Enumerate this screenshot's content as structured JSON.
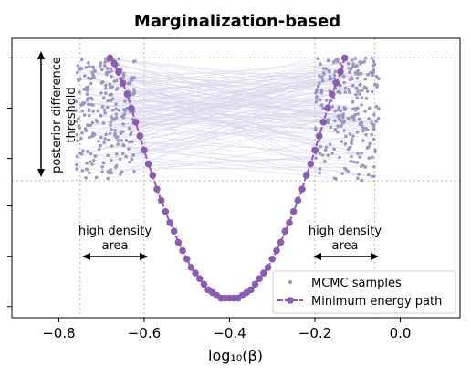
{
  "chart_data": {
    "type": "scatter",
    "title": "Marginalization-based",
    "xlabel": "log₁₀(β)",
    "ylabel": "",
    "xlim": [
      -0.91,
      0.14
    ],
    "ylim": [
      0,
      1
    ],
    "xticks": [
      -0.8,
      -0.6,
      -0.4,
      -0.2,
      0.0
    ],
    "xtick_labels": [
      "−0.8",
      "−0.6",
      "−0.4",
      "−0.2",
      "0.0"
    ],
    "yticks_unlabeled": [
      0.04,
      0.22,
      0.4,
      0.57,
      0.75,
      0.93
    ],
    "grid": "dotted vertical lines at -0.75, -0.60, -0.20, -0.06; dotted horizontal lines at y=0.93 and y=0.49",
    "legend": {
      "placement": "lower-right",
      "entries": [
        "MCMC samples",
        "Minimum energy path"
      ]
    },
    "colors": {
      "samples": "#9a96c2",
      "path": "#8c5bb5",
      "lines": "#d8d6ec",
      "grid": "#bdbdbd"
    },
    "series": [
      {
        "name": "Minimum energy path",
        "kind": "line-with-markers",
        "x": [
          -0.68,
          -0.67,
          -0.66,
          -0.65,
          -0.64,
          -0.63,
          -0.62,
          -0.61,
          -0.6,
          -0.59,
          -0.58,
          -0.57,
          -0.56,
          -0.55,
          -0.54,
          -0.53,
          -0.52,
          -0.51,
          -0.5,
          -0.49,
          -0.48,
          -0.47,
          -0.46,
          -0.45,
          -0.44,
          -0.43,
          -0.42,
          -0.41,
          -0.4,
          -0.39,
          -0.38,
          -0.37,
          -0.36,
          -0.35,
          -0.34,
          -0.33,
          -0.32,
          -0.31,
          -0.3,
          -0.29,
          -0.28,
          -0.27,
          -0.26,
          -0.25,
          -0.24,
          -0.23,
          -0.22,
          -0.21,
          -0.2,
          -0.19,
          -0.18,
          -0.17,
          -0.16,
          -0.15,
          -0.14,
          -0.13
        ],
        "y": [
          0.93,
          0.91,
          0.88,
          0.84,
          0.8,
          0.75,
          0.7,
          0.65,
          0.6,
          0.55,
          0.51,
          0.46,
          0.42,
          0.38,
          0.34,
          0.31,
          0.27,
          0.24,
          0.21,
          0.18,
          0.16,
          0.14,
          0.12,
          0.1,
          0.09,
          0.08,
          0.07,
          0.07,
          0.07,
          0.07,
          0.07,
          0.08,
          0.09,
          0.1,
          0.12,
          0.14,
          0.16,
          0.18,
          0.21,
          0.24,
          0.27,
          0.31,
          0.34,
          0.38,
          0.42,
          0.46,
          0.51,
          0.55,
          0.6,
          0.65,
          0.7,
          0.75,
          0.8,
          0.84,
          0.88,
          0.93
        ]
      },
      {
        "name": "MCMC samples",
        "kind": "points",
        "count": 500,
        "x_range_left": [
          -0.76,
          -0.62
        ],
        "x_range_right": [
          -0.2,
          -0.05
        ],
        "y_range": [
          0.49,
          0.93
        ]
      }
    ],
    "annotations": [
      {
        "text": "posterior difference",
        "rotation": -90
      },
      {
        "text": "threshold",
        "rotation": -90
      },
      {
        "text": "high density",
        "x": -0.68
      },
      {
        "text": "area",
        "x": -0.68
      },
      {
        "text": "high density",
        "x": -0.13
      },
      {
        "text": "area",
        "x": -0.13
      }
    ]
  }
}
